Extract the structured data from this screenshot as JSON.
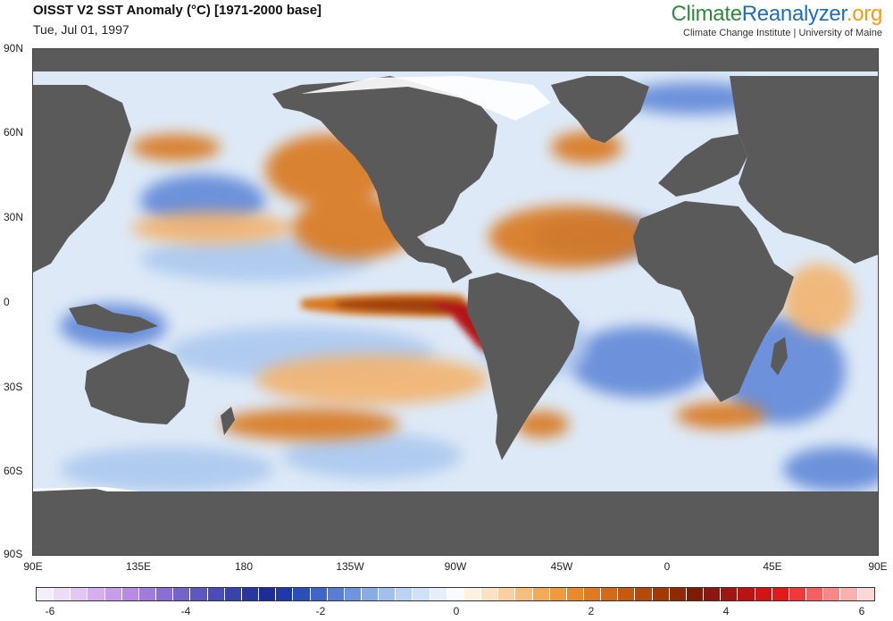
{
  "title": "OISST V2 SST Anomaly (°C) [1971-2000 base]",
  "date": "Tue, Jul 01, 1997",
  "brand": {
    "part1": "Climate",
    "part2": "Reanalyzer",
    "part3": ".org",
    "subtitle": "Climate Change Institute | University of Maine"
  },
  "lat_labels": [
    "90N",
    "60N",
    "30N",
    "0",
    "30S",
    "60S",
    "90S"
  ],
  "lon_labels": [
    "90E",
    "135E",
    "180",
    "135W",
    "90W",
    "45W",
    "0",
    "45E",
    "90E"
  ],
  "colorbar": {
    "tick_labels": [
      "-6",
      "-4",
      "-2",
      "0",
      "2",
      "4",
      "6"
    ],
    "colors": [
      "#f4eefa",
      "#ecdcf6",
      "#e2c7f2",
      "#d6b0ee",
      "#c99cea",
      "#b98ae4",
      "#a27cdc",
      "#8a6ed4",
      "#7463c9",
      "#5c58bf",
      "#4a4db5",
      "#3843ab",
      "#2a36a0",
      "#1e2c95",
      "#1f3aa6",
      "#2b4fb8",
      "#3e66c8",
      "#567ed4",
      "#7095de",
      "#8aace6",
      "#a2c0ee",
      "#bad2f4",
      "#d0e1f8",
      "#e6eefb",
      "#f8fbff",
      "#fdf1e2",
      "#fbe2c3",
      "#f9d09f",
      "#f6bd7c",
      "#f2aa5b",
      "#f09a40",
      "#ea8a2e",
      "#e07a22",
      "#d46a18",
      "#c65a10",
      "#b54a0a",
      "#a33a06",
      "#902a04",
      "#7c1c02",
      "#8a1810",
      "#a01612",
      "#b81414",
      "#cf1515",
      "#e31a1a",
      "#f03a3a",
      "#f56060",
      "#f88888",
      "#fbb0b0",
      "#fdd6d6"
    ],
    "range": [
      -6,
      6
    ]
  },
  "map_colors": {
    "ocean": "#dde9f7",
    "land": "#5a5a5a",
    "ice": "#ffffff",
    "warm_light": "#f3b36e",
    "warm_mid": "#d9771f",
    "warm_dark": "#a0400c",
    "hot": "#b31212",
    "cool_light": "#a9c6ee",
    "cool_mid": "#5a82d6",
    "cool_dark": "#2b46b0"
  }
}
